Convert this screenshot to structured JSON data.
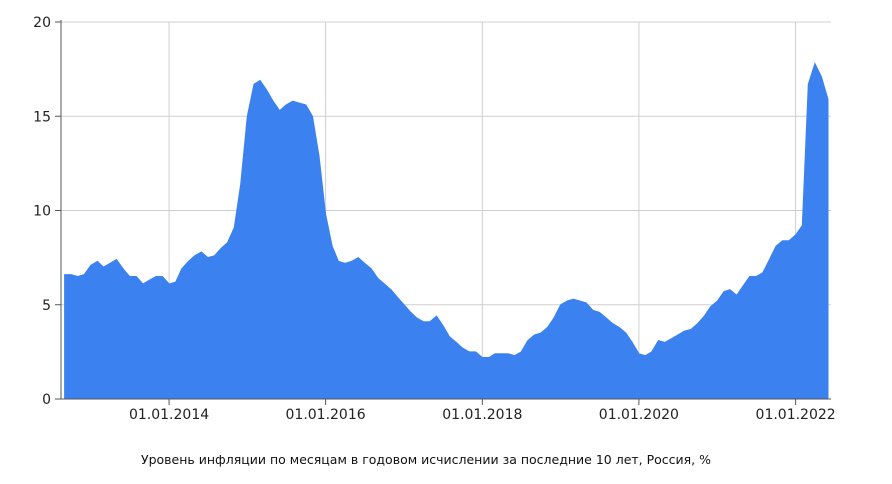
{
  "chart_data": {
    "type": "area",
    "caption": "Уровень инфляции по месяцам в годовом исчислении за последние 10 лет, Россия, %",
    "x_tick_labels": [
      "01.01.2014",
      "01.01.2016",
      "01.01.2018",
      "01.01.2020",
      "01.01.2022"
    ],
    "y_tick_labels": [
      "0",
      "5",
      "10",
      "15",
      "20"
    ],
    "ylim": [
      0,
      20
    ],
    "xlim": [
      "2012-08-15",
      "2022-06-15"
    ],
    "grid": true,
    "legend": "none",
    "fill_color": "#3b82f0",
    "grid_color": "#cfcfcf",
    "axis_color": "#555555",
    "series": [
      {
        "x": [
          "2012-09-01",
          "2012-10-01",
          "2012-11-01",
          "2012-12-01",
          "2013-01-01",
          "2013-02-01",
          "2013-03-01",
          "2013-04-01",
          "2013-05-01",
          "2013-06-01",
          "2013-07-01",
          "2013-08-01",
          "2013-09-01",
          "2013-10-01",
          "2013-11-01",
          "2013-12-01",
          "2014-01-01",
          "2014-02-01",
          "2014-03-01",
          "2014-04-01",
          "2014-05-01",
          "2014-06-01",
          "2014-07-01",
          "2014-08-01",
          "2014-09-01",
          "2014-10-01",
          "2014-11-01",
          "2014-12-01",
          "2015-01-01",
          "2015-02-01",
          "2015-03-01",
          "2015-04-01",
          "2015-05-01",
          "2015-06-01",
          "2015-07-01",
          "2015-08-01",
          "2015-09-01",
          "2015-10-01",
          "2015-11-01",
          "2015-12-01",
          "2016-01-01",
          "2016-02-01",
          "2016-03-01",
          "2016-04-01",
          "2016-05-01",
          "2016-06-01",
          "2016-07-01",
          "2016-08-01",
          "2016-09-01",
          "2016-10-01",
          "2016-11-01",
          "2016-12-01",
          "2017-01-01",
          "2017-02-01",
          "2017-03-01",
          "2017-04-01",
          "2017-05-01",
          "2017-06-01",
          "2017-07-01",
          "2017-08-01",
          "2017-09-01",
          "2017-10-01",
          "2017-11-01",
          "2017-12-01",
          "2018-01-01",
          "2018-02-01",
          "2018-03-01",
          "2018-04-01",
          "2018-05-01",
          "2018-06-01",
          "2018-07-01",
          "2018-08-01",
          "2018-09-01",
          "2018-10-01",
          "2018-11-01",
          "2018-12-01",
          "2019-01-01",
          "2019-02-01",
          "2019-03-01",
          "2019-04-01",
          "2019-05-01",
          "2019-06-01",
          "2019-07-01",
          "2019-08-01",
          "2019-09-01",
          "2019-10-01",
          "2019-11-01",
          "2019-12-01",
          "2020-01-01",
          "2020-02-01",
          "2020-03-01",
          "2020-04-01",
          "2020-05-01",
          "2020-06-01",
          "2020-07-01",
          "2020-08-01",
          "2020-09-01",
          "2020-10-01",
          "2020-11-01",
          "2020-12-01",
          "2021-01-01",
          "2021-02-01",
          "2021-03-01",
          "2021-04-01",
          "2021-05-01",
          "2021-06-01",
          "2021-07-01",
          "2021-08-01",
          "2021-09-01",
          "2021-10-01",
          "2021-11-01",
          "2021-12-01",
          "2022-01-01",
          "2022-02-01",
          "2022-03-01",
          "2022-04-01",
          "2022-05-01",
          "2022-06-01"
        ],
        "values": [
          6.6,
          6.6,
          6.5,
          6.6,
          7.1,
          7.3,
          7.0,
          7.2,
          7.4,
          6.9,
          6.5,
          6.5,
          6.1,
          6.3,
          6.5,
          6.5,
          6.1,
          6.2,
          6.9,
          7.3,
          7.6,
          7.8,
          7.5,
          7.6,
          8.0,
          8.3,
          9.1,
          11.4,
          15.0,
          16.7,
          16.9,
          16.4,
          15.8,
          15.3,
          15.6,
          15.8,
          15.7,
          15.6,
          15.0,
          12.9,
          9.8,
          8.1,
          7.3,
          7.2,
          7.3,
          7.5,
          7.2,
          6.9,
          6.4,
          6.1,
          5.8,
          5.4,
          5.0,
          4.6,
          4.3,
          4.1,
          4.1,
          4.4,
          3.9,
          3.3,
          3.0,
          2.7,
          2.5,
          2.5,
          2.2,
          2.2,
          2.4,
          2.4,
          2.4,
          2.3,
          2.5,
          3.1,
          3.4,
          3.5,
          3.8,
          4.3,
          5.0,
          5.2,
          5.3,
          5.2,
          5.1,
          4.7,
          4.6,
          4.3,
          4.0,
          3.8,
          3.5,
          3.0,
          2.4,
          2.3,
          2.5,
          3.1,
          3.0,
          3.2,
          3.4,
          3.6,
          3.7,
          4.0,
          4.4,
          4.9,
          5.2,
          5.7,
          5.8,
          5.5,
          6.0,
          6.5,
          6.5,
          6.7,
          7.4,
          8.1,
          8.4,
          8.4,
          8.7,
          9.2,
          16.7,
          17.8,
          17.1,
          15.9
        ]
      }
    ]
  }
}
